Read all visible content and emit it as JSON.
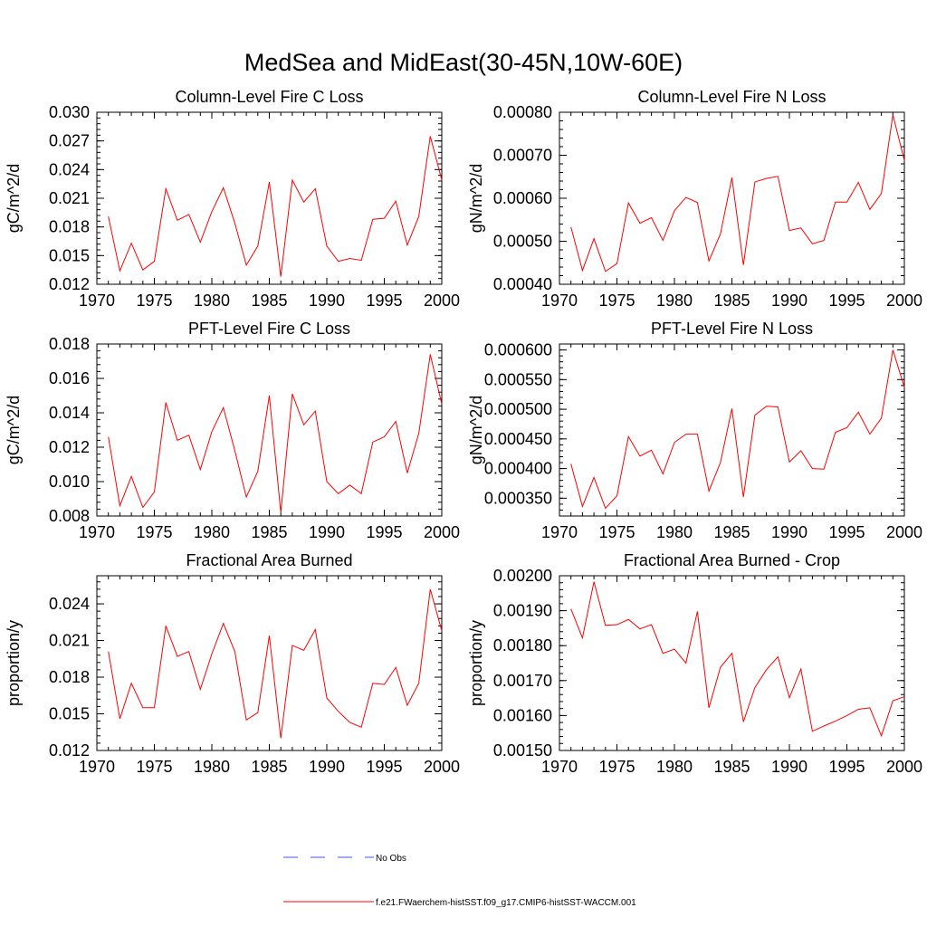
{
  "figure": {
    "title": "MedSea and MidEast(30-45N,10W-60E)"
  },
  "legend": {
    "items": [
      {
        "label": "No Obs",
        "style": "dashed",
        "color": "#3b5bdb"
      },
      {
        "label": "f.e21.FWaerchem-histSST.f09_g17.CMIP6-histSST-WACCM.001",
        "style": "solid",
        "color": "#ff0000"
      }
    ]
  },
  "chart_data": [
    {
      "type": "line",
      "title": "Column-Level Fire C Loss",
      "ylabel": "gC/m^2/d",
      "xlim": [
        1970,
        2000
      ],
      "ylim": [
        0.012,
        0.03
      ],
      "xticks": [
        1970,
        1975,
        1980,
        1985,
        1990,
        1995,
        2000
      ],
      "yticks": [
        0.012,
        0.015,
        0.018,
        0.021,
        0.024,
        0.027,
        0.03
      ],
      "ytick_labels": [
        "0.012",
        "0.015",
        "0.018",
        "0.021",
        "0.024",
        "0.027",
        "0.030"
      ],
      "x": [
        1971,
        1972,
        1973,
        1974,
        1975,
        1976,
        1977,
        1978,
        1979,
        1980,
        1981,
        1982,
        1983,
        1984,
        1985,
        1986,
        1987,
        1988,
        1989,
        1990,
        1991,
        1992,
        1993,
        1994,
        1995,
        1996,
        1997,
        1998,
        1999,
        2000
      ],
      "series": [
        {
          "color": "#ff0000",
          "values": [
            0.0191,
            0.0134,
            0.0163,
            0.0135,
            0.0144,
            0.022,
            0.0187,
            0.0193,
            0.0164,
            0.0196,
            0.0221,
            0.0184,
            0.014,
            0.016,
            0.0227,
            0.0128,
            0.0229,
            0.0206,
            0.022,
            0.016,
            0.0144,
            0.0147,
            0.0145,
            0.0188,
            0.0189,
            0.0207,
            0.0161,
            0.0191,
            0.0275,
            0.0229
          ]
        }
      ]
    },
    {
      "type": "line",
      "title": "Column-Level Fire N Loss",
      "ylabel": "gN/m^2/d",
      "xlim": [
        1970,
        2000
      ],
      "ylim": [
        0.0004,
        0.0008
      ],
      "xticks": [
        1970,
        1975,
        1980,
        1985,
        1990,
        1995,
        2000
      ],
      "yticks": [
        0.0004,
        0.0005,
        0.0006,
        0.0007,
        0.0008
      ],
      "ytick_labels": [
        "0.00040",
        "0.00050",
        "0.00060",
        "0.00070",
        "0.00080"
      ],
      "x": [
        1971,
        1972,
        1973,
        1974,
        1975,
        1976,
        1977,
        1978,
        1979,
        1980,
        1981,
        1982,
        1983,
        1984,
        1985,
        1986,
        1987,
        1988,
        1989,
        1990,
        1991,
        1992,
        1993,
        1994,
        1995,
        1996,
        1997,
        1998,
        1999,
        2000
      ],
      "series": [
        {
          "color": "#ff0000",
          "values": [
            0.000533,
            0.000432,
            0.000506,
            0.00043,
            0.000448,
            0.000589,
            0.000542,
            0.000555,
            0.000502,
            0.000571,
            0.000602,
            0.00059,
            0.000454,
            0.000517,
            0.000648,
            0.000445,
            0.000638,
            0.000646,
            0.000651,
            0.000525,
            0.000531,
            0.000494,
            0.000502,
            0.000591,
            0.000591,
            0.000637,
            0.000574,
            0.000611,
            0.000794,
            0.000688
          ]
        }
      ]
    },
    {
      "type": "line",
      "title": "PFT-Level Fire C Loss",
      "ylabel": "gC/m^2/d",
      "xlim": [
        1970,
        2000
      ],
      "ylim": [
        0.008,
        0.018
      ],
      "xticks": [
        1970,
        1975,
        1980,
        1985,
        1990,
        1995,
        2000
      ],
      "yticks": [
        0.008,
        0.01,
        0.012,
        0.014,
        0.016,
        0.018
      ],
      "ytick_labels": [
        "0.008",
        "0.010",
        "0.012",
        "0.014",
        "0.016",
        "0.018"
      ],
      "x": [
        1971,
        1972,
        1973,
        1974,
        1975,
        1976,
        1977,
        1978,
        1979,
        1980,
        1981,
        1982,
        1983,
        1984,
        1985,
        1986,
        1987,
        1988,
        1989,
        1990,
        1991,
        1992,
        1993,
        1994,
        1995,
        1996,
        1997,
        1998,
        1999,
        2000
      ],
      "series": [
        {
          "color": "#ff0000",
          "values": [
            0.0126,
            0.0086,
            0.0103,
            0.0085,
            0.0094,
            0.0146,
            0.0124,
            0.0127,
            0.0107,
            0.0129,
            0.0143,
            0.0118,
            0.0091,
            0.0106,
            0.015,
            0.0082,
            0.0151,
            0.0133,
            0.0141,
            0.01,
            0.0093,
            0.0098,
            0.0093,
            0.0123,
            0.0126,
            0.0135,
            0.0105,
            0.0128,
            0.0174,
            0.0145
          ]
        }
      ]
    },
    {
      "type": "line",
      "title": "PFT-Level Fire N Loss",
      "ylabel": "gN/m^2/d",
      "xlim": [
        1970,
        2000
      ],
      "ylim": [
        0.00032,
        0.00061
      ],
      "xticks": [
        1970,
        1975,
        1980,
        1985,
        1990,
        1995,
        2000
      ],
      "yticks": [
        0.00035,
        0.0004,
        0.00045,
        0.0005,
        0.00055,
        0.0006
      ],
      "ytick_labels": [
        "0.000350",
        "0.000400",
        "0.000450",
        "0.000500",
        "0.000550",
        "0.000600"
      ],
      "x": [
        1971,
        1972,
        1973,
        1974,
        1975,
        1976,
        1977,
        1978,
        1979,
        1980,
        1981,
        1982,
        1983,
        1984,
        1985,
        1986,
        1987,
        1988,
        1989,
        1990,
        1991,
        1992,
        1993,
        1994,
        1995,
        1996,
        1997,
        1998,
        1999,
        2000
      ],
      "series": [
        {
          "color": "#ff0000",
          "values": [
            0.000408,
            0.000336,
            0.000385,
            0.000333,
            0.000354,
            0.000454,
            0.000421,
            0.000431,
            0.000391,
            0.000444,
            0.000458,
            0.000458,
            0.000362,
            0.00041,
            0.000501,
            0.000352,
            0.00049,
            0.000505,
            0.000504,
            0.000411,
            0.00043,
            0.0004,
            0.000399,
            0.000461,
            0.000469,
            0.000495,
            0.000458,
            0.000485,
            0.0006,
            0.000537
          ]
        }
      ]
    },
    {
      "type": "line",
      "title": "Fractional Area Burned",
      "ylabel": "proportion/y",
      "xlim": [
        1970,
        2000
      ],
      "ylim": [
        0.012,
        0.0263
      ],
      "xticks": [
        1970,
        1975,
        1980,
        1985,
        1990,
        1995,
        2000
      ],
      "yticks": [
        0.012,
        0.015,
        0.018,
        0.021,
        0.024
      ],
      "ytick_labels": [
        "0.012",
        "0.015",
        "0.018",
        "0.021",
        "0.024"
      ],
      "x": [
        1971,
        1972,
        1973,
        1974,
        1975,
        1976,
        1977,
        1978,
        1979,
        1980,
        1981,
        1982,
        1983,
        1984,
        1985,
        1986,
        1987,
        1988,
        1989,
        1990,
        1991,
        1992,
        1993,
        1994,
        1995,
        1996,
        1997,
        1998,
        1999,
        2000
      ],
      "series": [
        {
          "color": "#ff0000",
          "values": [
            0.0201,
            0.0146,
            0.0175,
            0.0155,
            0.0155,
            0.0222,
            0.0197,
            0.0201,
            0.017,
            0.0199,
            0.0224,
            0.0201,
            0.0145,
            0.0151,
            0.0214,
            0.013,
            0.0206,
            0.0202,
            0.0219,
            0.0163,
            0.0152,
            0.0143,
            0.0139,
            0.0175,
            0.0174,
            0.0188,
            0.0157,
            0.0175,
            0.0252,
            0.0218
          ]
        }
      ]
    },
    {
      "type": "line",
      "title": "Fractional Area Burned - Crop",
      "ylabel": "proportion/y",
      "xlim": [
        1970,
        2000
      ],
      "ylim": [
        0.0015,
        0.002
      ],
      "xticks": [
        1970,
        1975,
        1980,
        1985,
        1990,
        1995,
        2000
      ],
      "yticks": [
        0.0015,
        0.0016,
        0.0017,
        0.0018,
        0.0019,
        0.002
      ],
      "ytick_labels": [
        "0.00150",
        "0.00160",
        "0.00170",
        "0.00180",
        "0.00190",
        "0.00200"
      ],
      "x": [
        1971,
        1972,
        1973,
        1974,
        1975,
        1976,
        1977,
        1978,
        1979,
        1980,
        1981,
        1982,
        1983,
        1984,
        1985,
        1986,
        1987,
        1988,
        1989,
        1990,
        1991,
        1992,
        1993,
        1994,
        1995,
        1996,
        1997,
        1998,
        1999,
        2000
      ],
      "series": [
        {
          "color": "#ff0000",
          "values": [
            0.001905,
            0.001822,
            0.001983,
            0.001858,
            0.00186,
            0.001875,
            0.001848,
            0.00186,
            0.001778,
            0.00179,
            0.00175,
            0.001898,
            0.001622,
            0.001738,
            0.001778,
            0.001582,
            0.00168,
            0.001731,
            0.001768,
            0.001651,
            0.001733,
            0.001555,
            0.00157,
            0.001584,
            0.0016,
            0.001618,
            0.001622,
            0.001542,
            0.001642,
            0.001654
          ]
        }
      ]
    }
  ]
}
